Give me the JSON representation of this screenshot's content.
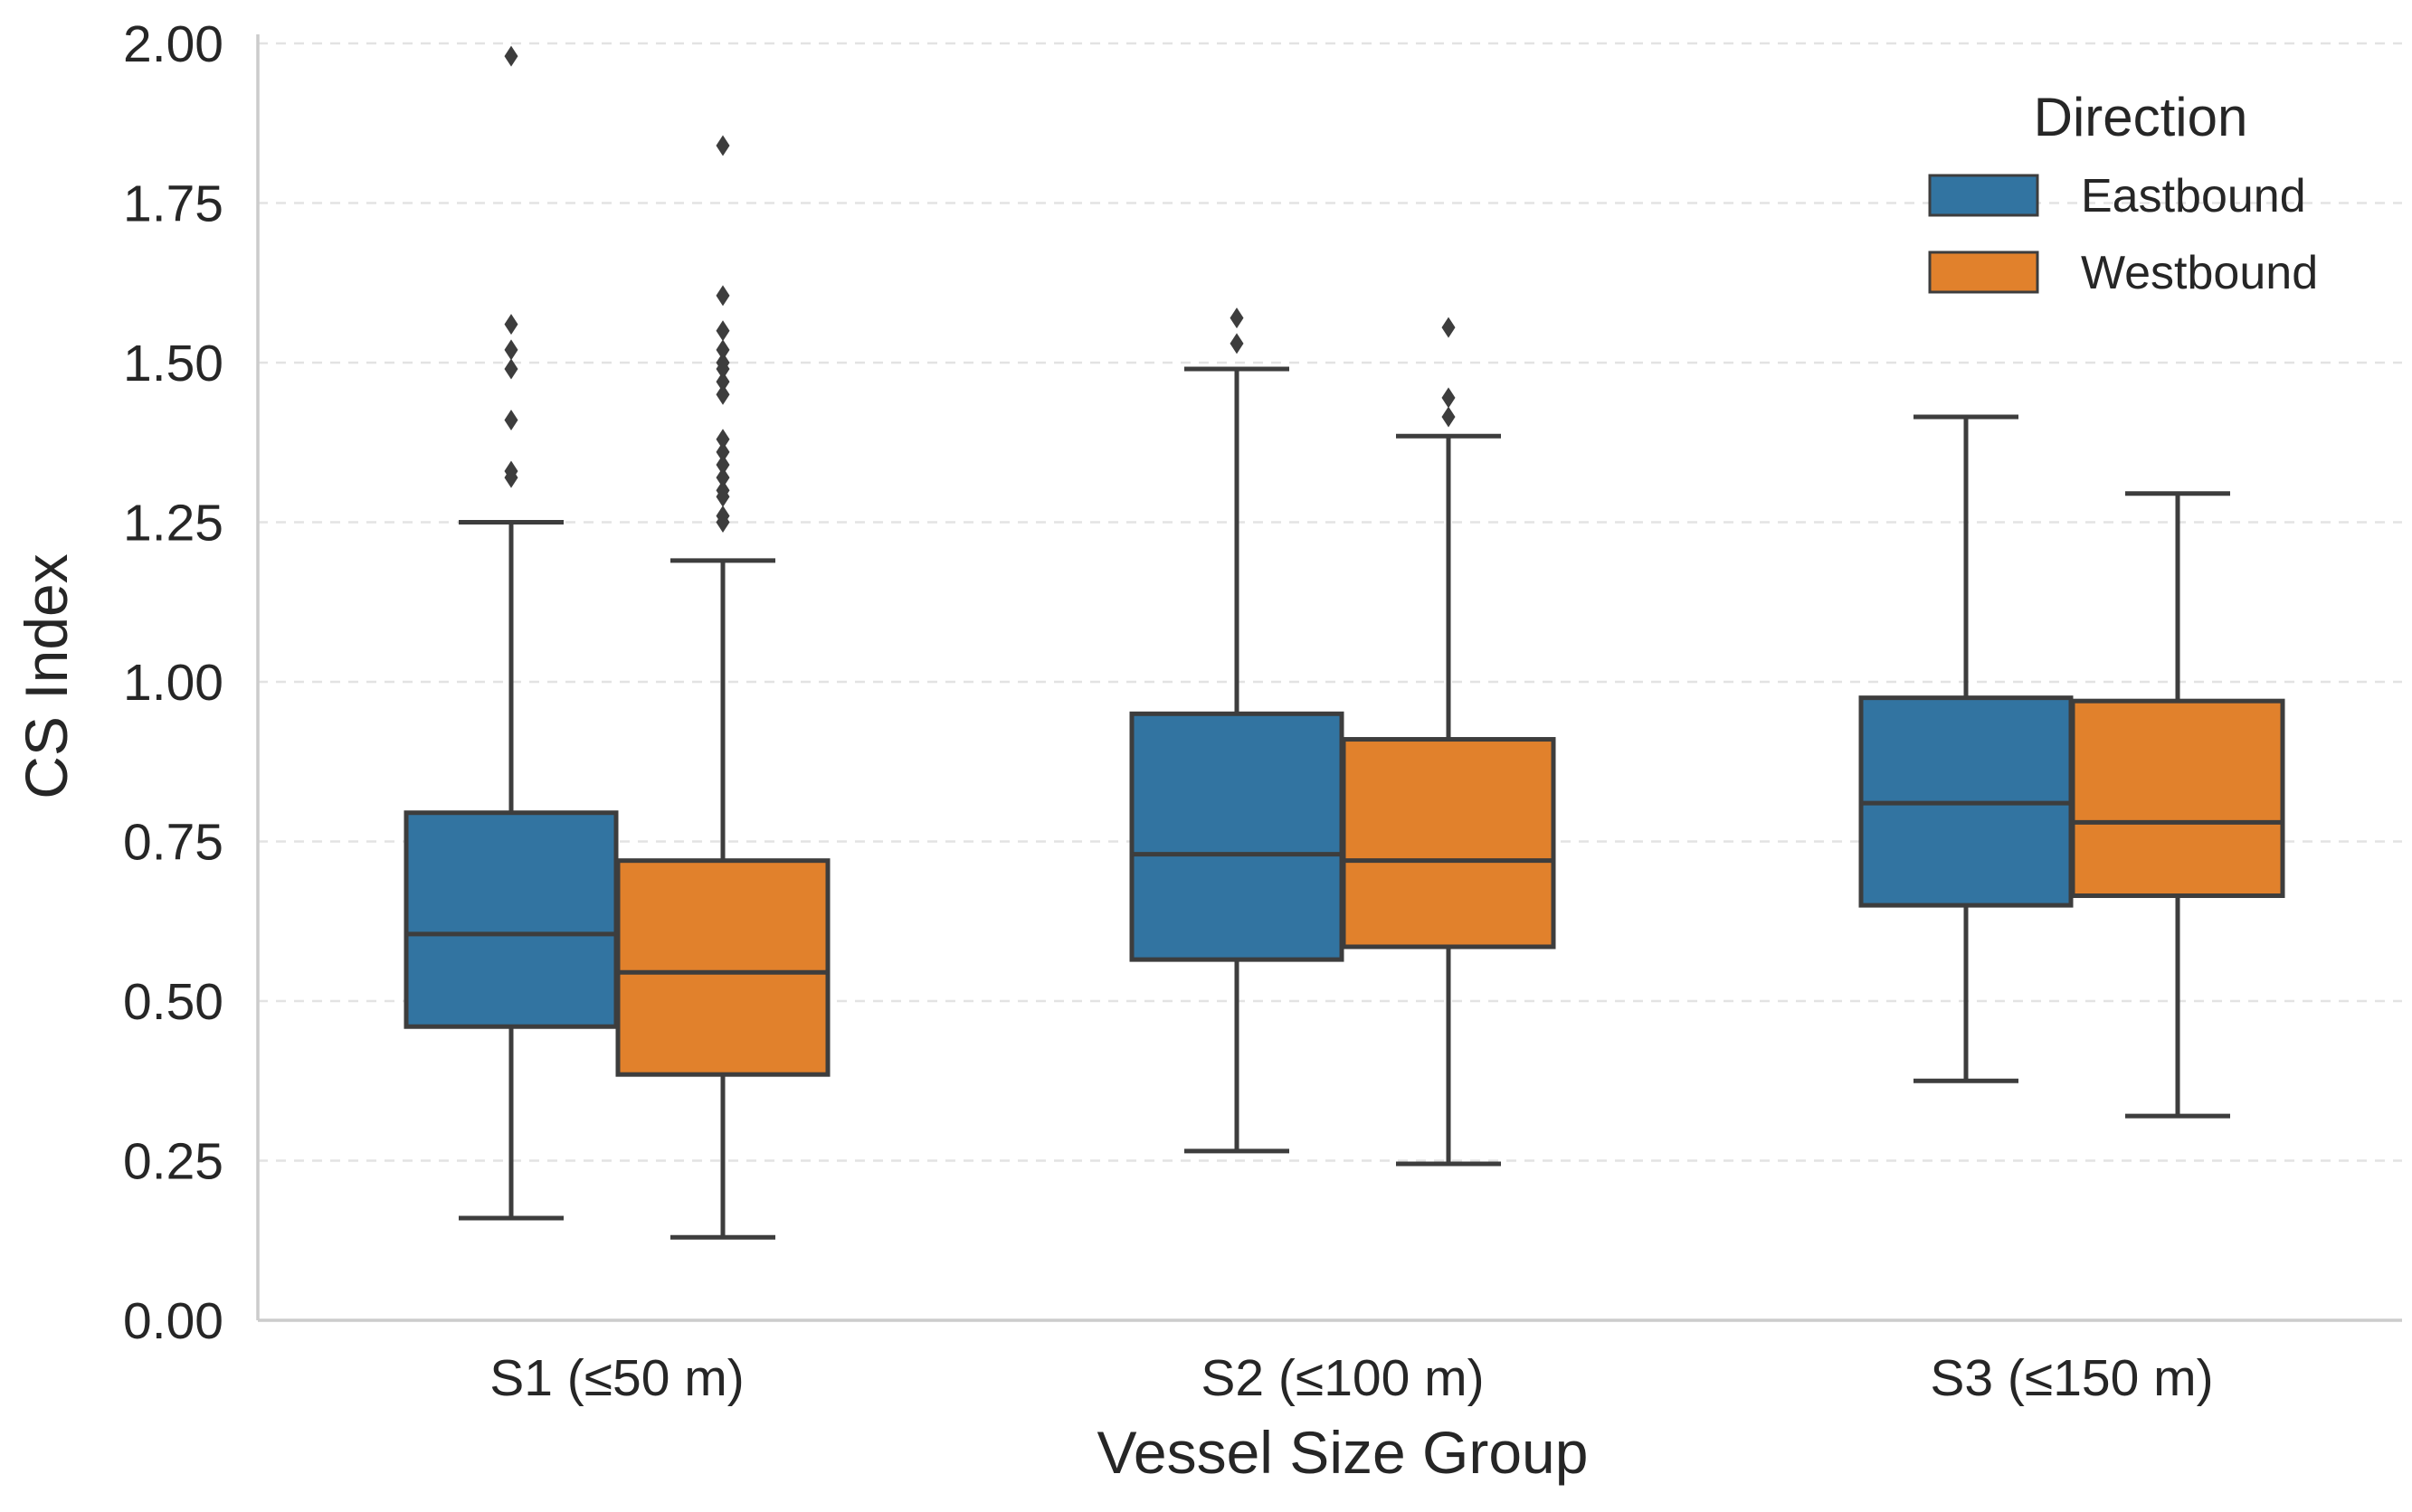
{
  "chart_data": {
    "type": "box",
    "xlabel": "Vessel Size Group",
    "ylabel": "CS Index",
    "ylim": [
      0,
      2
    ],
    "yticks": [
      "0.00",
      "0.25",
      "0.50",
      "0.75",
      "1.00",
      "1.25",
      "1.50",
      "1.75",
      "2.00"
    ],
    "grid": "horizontal dashed",
    "categories": [
      "S1 (≤50 m)",
      "S2 (≤100 m)",
      "S3 (≤150 m)"
    ],
    "legend": {
      "title": "Direction",
      "position": "top-right"
    },
    "series": [
      {
        "name": "Eastbound",
        "color": "#3274a1",
        "boxes": [
          {
            "whislo": 0.16,
            "q1": 0.46,
            "median": 0.605,
            "q3": 0.795,
            "whishi": 1.25,
            "fliers": [
              1.32,
              1.33,
              1.41,
              1.49,
              1.52,
              1.56,
              1.98
            ]
          },
          {
            "whislo": 0.265,
            "q1": 0.565,
            "median": 0.73,
            "q3": 0.95,
            "whishi": 1.49,
            "fliers": [
              1.53,
              1.57
            ]
          },
          {
            "whislo": 0.375,
            "q1": 0.65,
            "median": 0.81,
            "q3": 0.975,
            "whishi": 1.415,
            "fliers": []
          }
        ]
      },
      {
        "name": "Westbound",
        "color": "#e1812c",
        "boxes": [
          {
            "whislo": 0.13,
            "q1": 0.385,
            "median": 0.545,
            "q3": 0.72,
            "whishi": 1.19,
            "fliers": [
              1.25,
              1.26,
              1.29,
              1.3,
              1.32,
              1.34,
              1.36,
              1.38,
              1.45,
              1.47,
              1.49,
              1.5,
              1.52,
              1.55,
              1.605,
              1.84
            ]
          },
          {
            "whislo": 0.245,
            "q1": 0.585,
            "median": 0.72,
            "q3": 0.91,
            "whishi": 1.385,
            "fliers": [
              1.415,
              1.445,
              1.555
            ]
          },
          {
            "whislo": 0.32,
            "q1": 0.665,
            "median": 0.78,
            "q3": 0.97,
            "whishi": 1.295,
            "fliers": []
          }
        ]
      }
    ]
  }
}
